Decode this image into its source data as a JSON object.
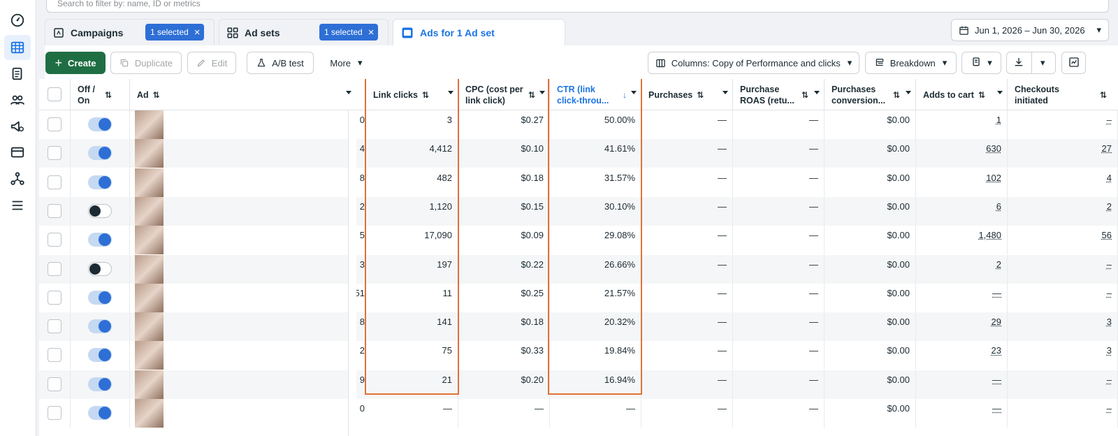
{
  "search": {
    "placeholder": "Search to filter by: name, ID or metrics"
  },
  "tabs": {
    "campaigns": {
      "label": "Campaigns",
      "badge": "1 selected"
    },
    "adsets": {
      "label": "Ad sets",
      "badge": "1 selected"
    },
    "ads": {
      "label": "Ads for 1 Ad set"
    }
  },
  "date_range": "Jun 1, 2026 – Jun 30, 2026",
  "toolbar": {
    "create": "Create",
    "duplicate": "Duplicate",
    "edit": "Edit",
    "ab_test": "A/B test",
    "more": "More",
    "columns": "Columns: Copy of Performance and clicks",
    "breakdown": "Breakdown"
  },
  "headers": {
    "off_on": [
      "Off /",
      "On"
    ],
    "ad": "Ad",
    "link_clicks": "Link clicks",
    "cpc": [
      "CPC (cost per",
      "link click)"
    ],
    "ctr": [
      "CTR (link",
      "click-throu..."
    ],
    "purchases": "Purchases",
    "purchase_roas": [
      "Purchase",
      "ROAS (retu..."
    ],
    "purchases_conv": [
      "Purchases",
      "conversion..."
    ],
    "adds_to_cart": "Adds to cart",
    "checkouts": [
      "Checkouts",
      "initiated"
    ]
  },
  "rows": [
    {
      "on": true,
      "prev": "0",
      "link_clicks": "3",
      "cpc": "$0.27",
      "ctr": "50.00%",
      "purchases": "—",
      "roas": "—",
      "conv": "$0.00",
      "atc": "1",
      "checkouts": "–"
    },
    {
      "on": true,
      "prev": "4",
      "link_clicks": "4,412",
      "cpc": "$0.10",
      "ctr": "41.61%",
      "purchases": "—",
      "roas": "—",
      "conv": "$0.00",
      "atc": "630",
      "checkouts": "27"
    },
    {
      "on": true,
      "prev": "8",
      "link_clicks": "482",
      "cpc": "$0.18",
      "ctr": "31.57%",
      "purchases": "—",
      "roas": "—",
      "conv": "$0.00",
      "atc": "102",
      "checkouts": "4"
    },
    {
      "on": false,
      "prev": "2",
      "link_clicks": "1,120",
      "cpc": "$0.15",
      "ctr": "30.10%",
      "purchases": "—",
      "roas": "—",
      "conv": "$0.00",
      "atc": "6",
      "checkouts": "2"
    },
    {
      "on": true,
      "prev": "5",
      "link_clicks": "17,090",
      "cpc": "$0.09",
      "ctr": "29.08%",
      "purchases": "—",
      "roas": "—",
      "conv": "$0.00",
      "atc": "1,480",
      "checkouts": "56"
    },
    {
      "on": false,
      "prev": "3",
      "link_clicks": "197",
      "cpc": "$0.22",
      "ctr": "26.66%",
      "purchases": "—",
      "roas": "—",
      "conv": "$0.00",
      "atc": "2",
      "checkouts": "–"
    },
    {
      "on": true,
      "prev": "51",
      "link_clicks": "11",
      "cpc": "$0.25",
      "ctr": "21.57%",
      "purchases": "—",
      "roas": "—",
      "conv": "$0.00",
      "atc": "—",
      "checkouts": "–"
    },
    {
      "on": true,
      "prev": "8",
      "link_clicks": "141",
      "cpc": "$0.18",
      "ctr": "20.32%",
      "purchases": "—",
      "roas": "—",
      "conv": "$0.00",
      "atc": "29",
      "checkouts": "3"
    },
    {
      "on": true,
      "prev": "2",
      "link_clicks": "75",
      "cpc": "$0.33",
      "ctr": "19.84%",
      "purchases": "—",
      "roas": "—",
      "conv": "$0.00",
      "atc": "23",
      "checkouts": "3"
    },
    {
      "on": true,
      "prev": "9",
      "link_clicks": "21",
      "cpc": "$0.20",
      "ctr": "16.94%",
      "purchases": "—",
      "roas": "—",
      "conv": "$0.00",
      "atc": "—",
      "checkouts": "–"
    },
    {
      "on": true,
      "prev": "0",
      "link_clicks": "—",
      "cpc": "—",
      "ctr": "—",
      "purchases": "—",
      "roas": "—",
      "conv": "$0.00",
      "atc": "—",
      "checkouts": "–"
    }
  ],
  "colors": {
    "accent": "#1b74e4",
    "create": "#1f6e43",
    "highlight": "#e0713a"
  }
}
